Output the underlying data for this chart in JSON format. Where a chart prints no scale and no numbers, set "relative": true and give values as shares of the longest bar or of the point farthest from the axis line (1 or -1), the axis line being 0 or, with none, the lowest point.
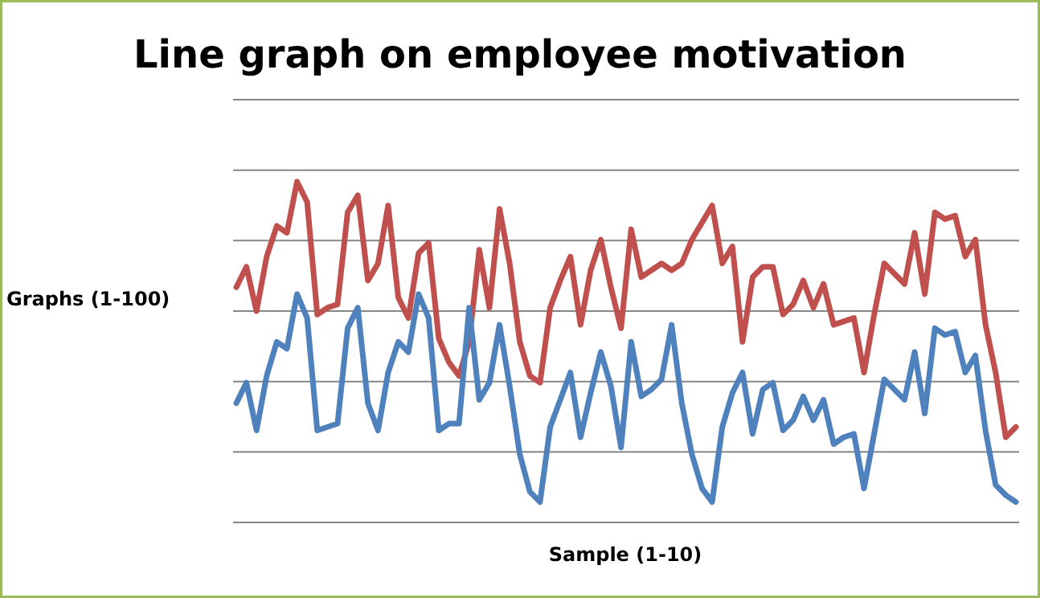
{
  "chart_data": {
    "type": "line",
    "title": "Line graph on employee motivation",
    "xlabel": "Sample (1-10)",
    "ylabel": "Graphs (1-100)",
    "relative": true,
    "grid": "y",
    "marker": "none",
    "line_style": "solid",
    "categories": [
      null,
      null,
      null,
      null,
      null,
      null,
      null,
      null,
      null,
      null,
      null,
      null,
      null,
      null,
      null,
      null,
      null,
      null,
      null,
      null,
      null,
      null,
      null,
      null,
      null,
      null,
      null,
      null,
      null,
      null,
      null,
      null,
      null,
      null,
      null,
      null,
      null,
      null,
      null,
      null,
      null,
      null,
      null,
      null,
      null,
      null,
      null,
      null,
      null,
      null,
      null,
      null,
      null,
      null,
      null,
      null,
      null,
      null,
      null,
      null,
      null,
      null,
      null,
      null,
      null,
      null,
      null,
      null,
      null,
      null,
      null,
      null,
      null,
      null,
      null,
      null,
      null,
      null
    ],
    "series": [
      {
        "color": "#c0504d",
        "values": [
          0.69,
          0.75,
          0.62,
          0.78,
          0.87,
          0.85,
          1.0,
          0.94,
          0.61,
          0.63,
          0.64,
          0.91,
          0.96,
          0.71,
          0.76,
          0.93,
          0.66,
          0.6,
          0.79,
          0.82,
          0.54,
          0.47,
          0.43,
          0.53,
          0.8,
          0.63,
          0.92,
          0.76,
          0.53,
          0.43,
          0.41,
          0.63,
          0.71,
          0.78,
          0.58,
          0.74,
          0.83,
          0.69,
          0.57,
          0.86,
          0.72,
          0.74,
          0.76,
          0.74,
          0.76,
          0.83,
          0.88,
          0.93,
          0.76,
          0.81,
          0.53,
          0.72,
          0.75,
          0.75,
          0.61,
          0.64,
          0.71,
          0.63,
          0.7,
          0.58,
          0.59,
          0.6,
          0.44,
          0.61,
          0.76,
          0.73,
          0.7,
          0.85,
          0.67,
          0.91,
          0.89,
          0.9,
          0.78,
          0.83,
          0.58,
          0.44,
          0.25,
          0.28
        ]
      },
      {
        "color": "#4f81bd",
        "values": [
          0.35,
          0.41,
          0.27,
          0.43,
          0.53,
          0.51,
          0.67,
          0.6,
          0.27,
          0.28,
          0.29,
          0.57,
          0.63,
          0.35,
          0.27,
          0.44,
          0.53,
          0.5,
          0.67,
          0.6,
          0.27,
          0.29,
          0.29,
          0.63,
          0.36,
          0.41,
          0.58,
          0.4,
          0.2,
          0.09,
          0.06,
          0.28,
          0.36,
          0.44,
          0.25,
          0.38,
          0.5,
          0.4,
          0.22,
          0.53,
          0.37,
          0.39,
          0.42,
          0.58,
          0.35,
          0.2,
          0.1,
          0.06,
          0.28,
          0.38,
          0.44,
          0.26,
          0.39,
          0.41,
          0.27,
          0.3,
          0.37,
          0.3,
          0.36,
          0.23,
          0.25,
          0.26,
          0.1,
          0.26,
          0.42,
          0.39,
          0.36,
          0.5,
          0.32,
          0.57,
          0.55,
          0.56,
          0.44,
          0.49,
          0.27,
          0.11,
          0.08,
          0.06
        ]
      }
    ]
  }
}
